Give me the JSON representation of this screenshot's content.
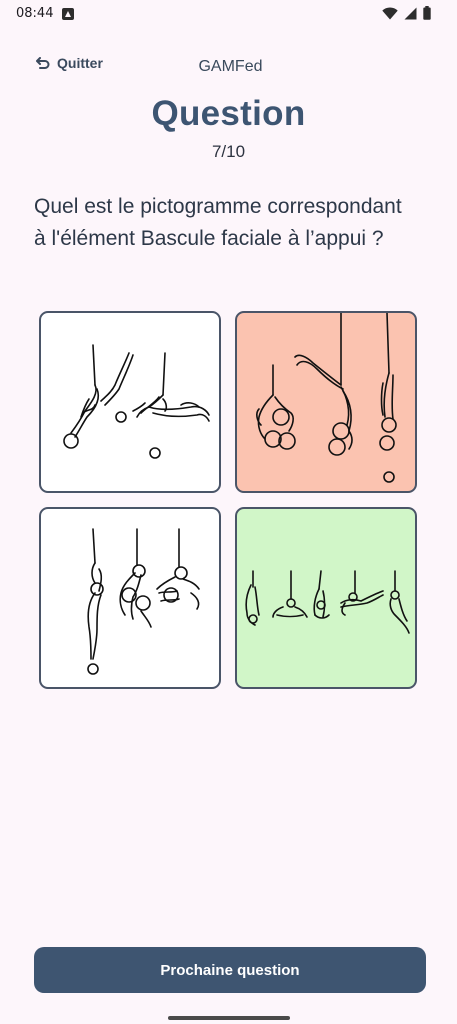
{
  "status_bar": {
    "time": "08:44",
    "icons": [
      "notification-icon",
      "wifi-icon",
      "signal-icon",
      "battery-icon"
    ]
  },
  "header": {
    "quit_label": "Quitter",
    "quit_icon": "undo-arrow-icon",
    "app_name": "GAMFed"
  },
  "title": "Question",
  "progress": {
    "text": "7/10",
    "current": 7,
    "total": 10
  },
  "question": "Quel est le pictogramme correspondant à l'élément Bascule faciale à l’appui ?",
  "answers": [
    {
      "id": 1,
      "state": "neutral",
      "background": "#ffffff"
    },
    {
      "id": 2,
      "state": "wrong",
      "background": "#fbc3b0"
    },
    {
      "id": 3,
      "state": "neutral",
      "background": "#ffffff"
    },
    {
      "id": 4,
      "state": "correct",
      "background": "#d1f6c8"
    }
  ],
  "colors": {
    "accent": "#3e5571",
    "title": "#3d5572",
    "wrong": "#fbc3b0",
    "correct": "#d1f6c8",
    "background": "#fdf6fb"
  },
  "next_button_label": "Prochaine question"
}
